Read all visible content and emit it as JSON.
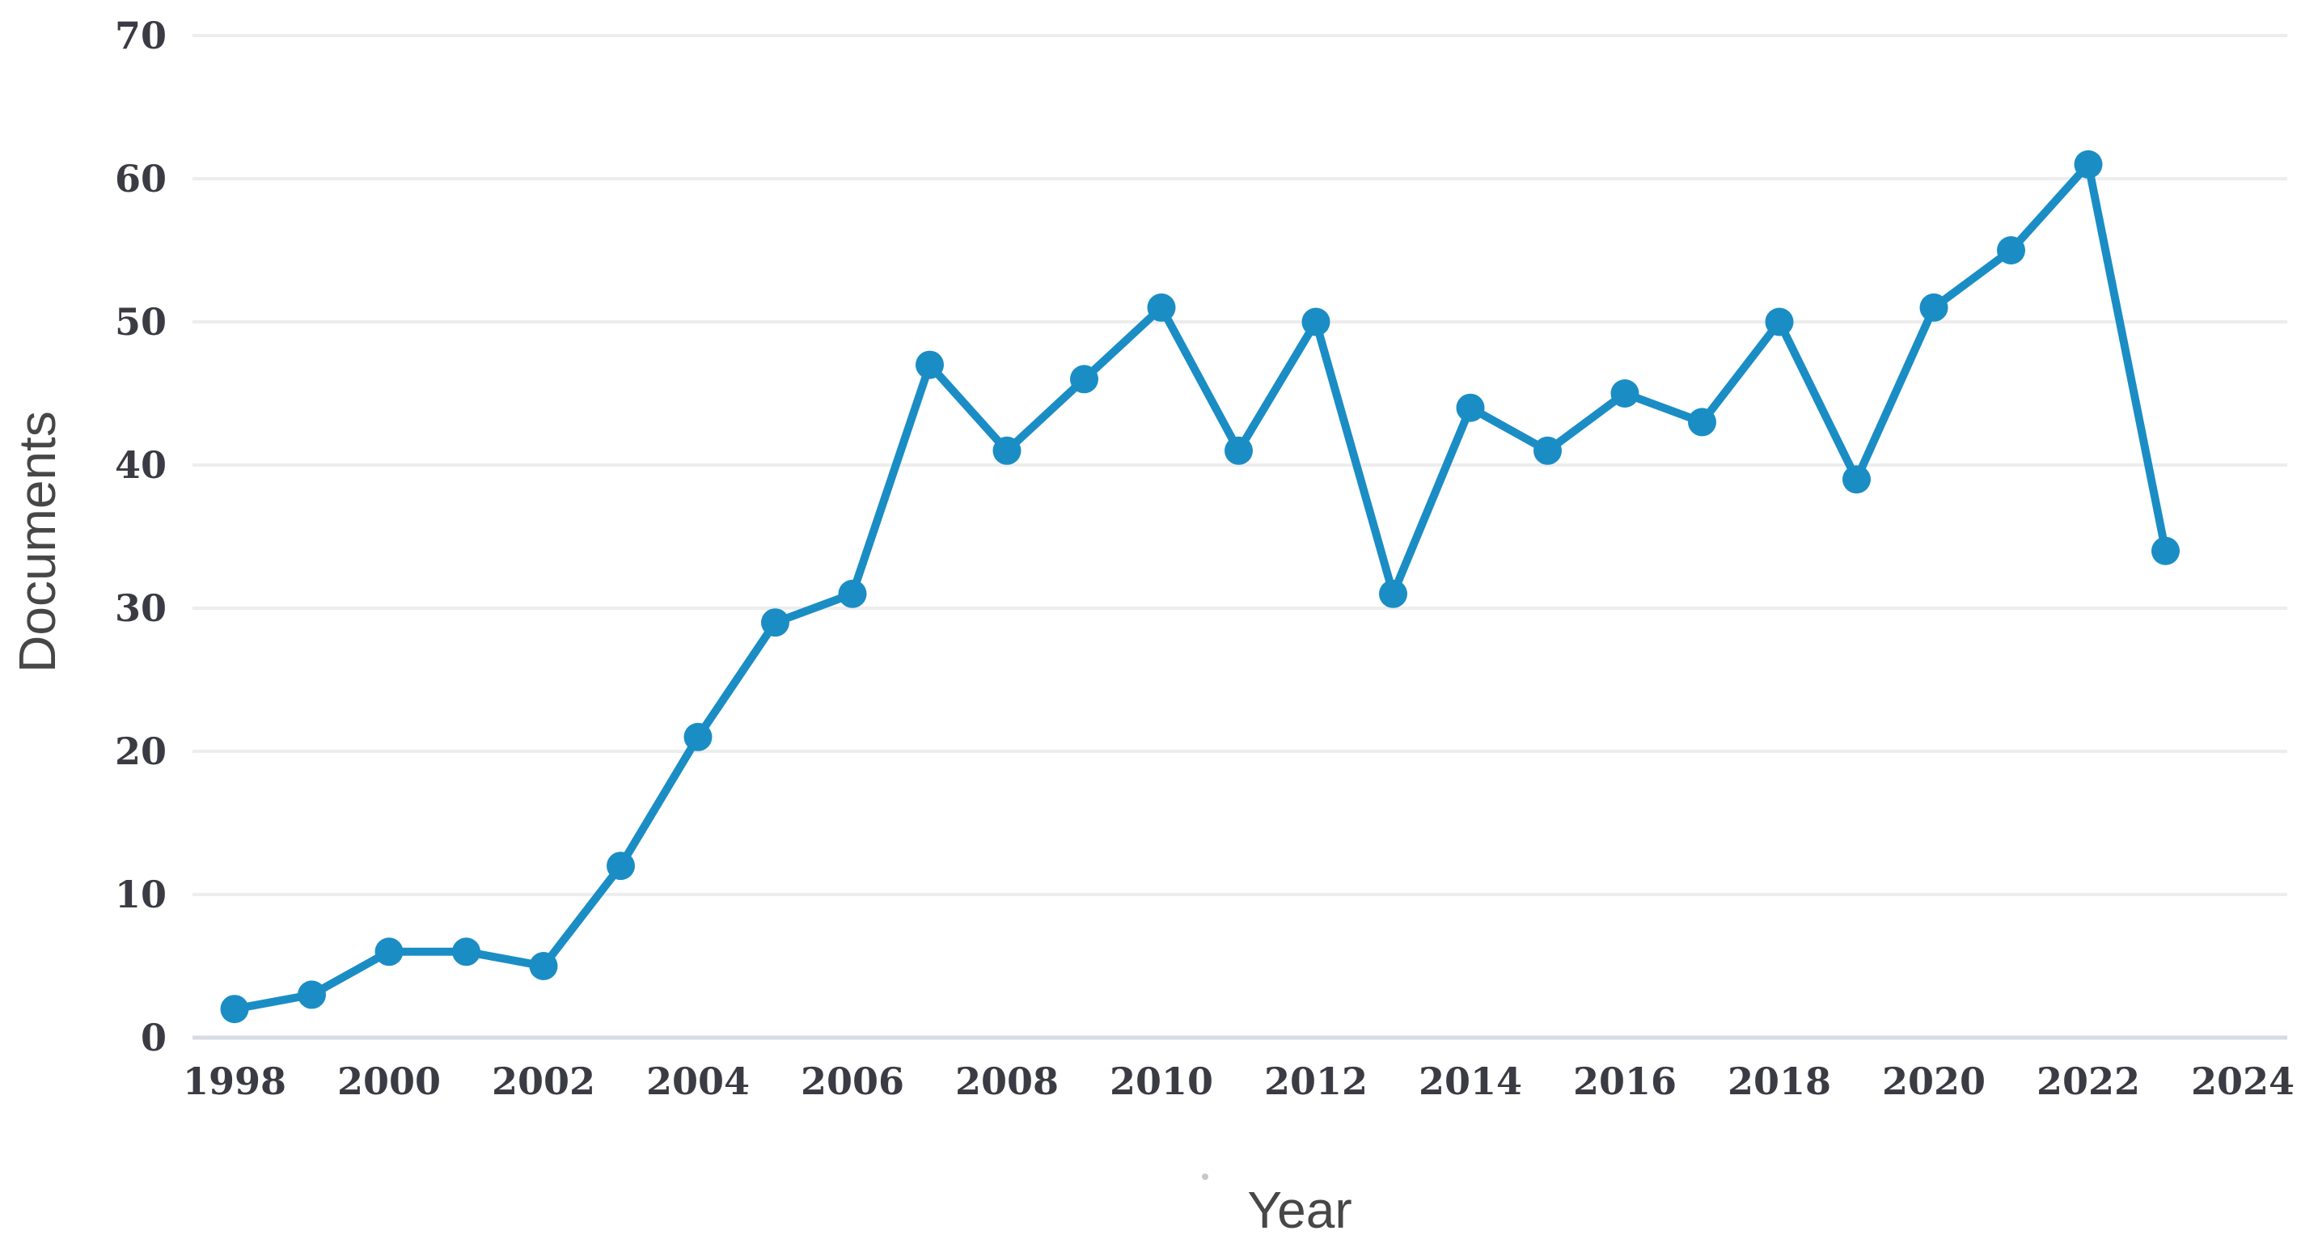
{
  "chart_data": {
    "type": "line",
    "title": "",
    "xlabel": "Year",
    "ylabel": "Documents",
    "x": [
      1998,
      1999,
      2000,
      2001,
      2002,
      2003,
      2004,
      2005,
      2006,
      2007,
      2008,
      2009,
      2010,
      2011,
      2012,
      2013,
      2014,
      2015,
      2016,
      2017,
      2018,
      2019,
      2020,
      2021,
      2022,
      2023
    ],
    "values": [
      2,
      3,
      6,
      6,
      5,
      12,
      21,
      29,
      31,
      47,
      41,
      46,
      51,
      41,
      50,
      31,
      44,
      41,
      45,
      43,
      50,
      39,
      51,
      55,
      61,
      34
    ],
    "series_name": "Documents",
    "xticks": [
      1998,
      2000,
      2002,
      2004,
      2006,
      2008,
      2010,
      2012,
      2014,
      2016,
      2018,
      2020,
      2022,
      2024
    ],
    "yticks": [
      0,
      10,
      20,
      30,
      40,
      50,
      60,
      70
    ],
    "ylim": [
      0,
      70
    ],
    "xlim": [
      1998,
      2024
    ],
    "grid": "horizontal",
    "legend": "none",
    "marker": "circle",
    "colors": {
      "line": "#1b8dc5",
      "marker": "#1b8dc5",
      "grid": "#ededed",
      "baseline": "#d7dbe6",
      "tick_text": "#3b3b44",
      "axis_title_text": "#474747",
      "background": "#ffffff"
    }
  }
}
